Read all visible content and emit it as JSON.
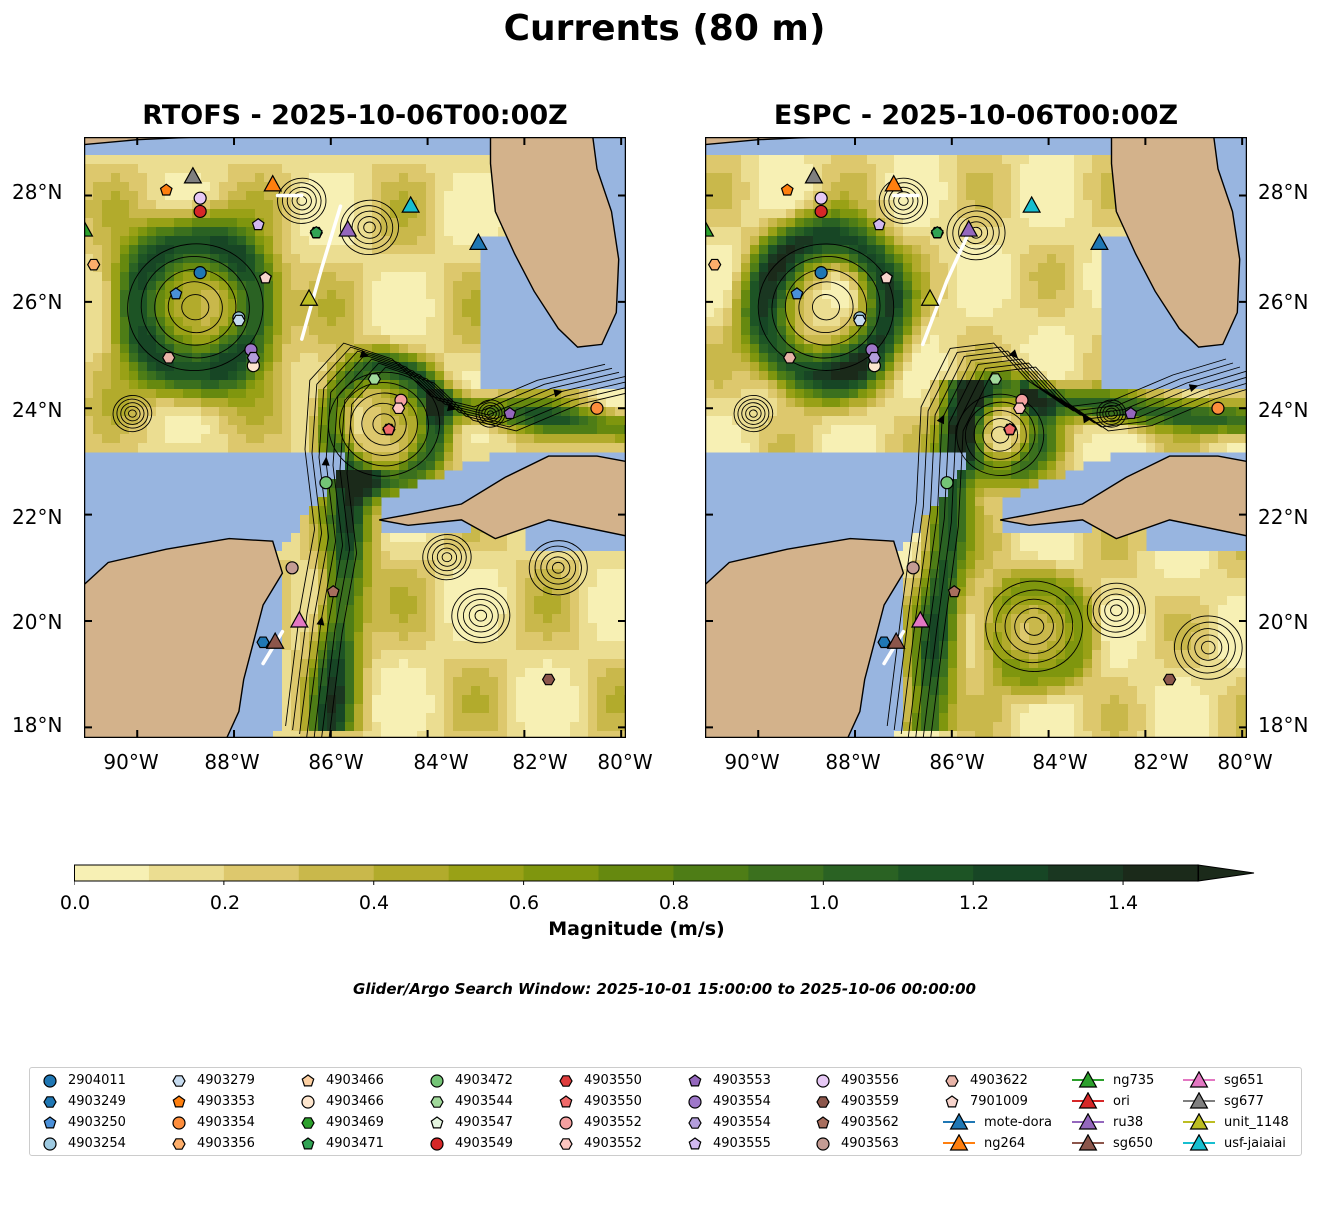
{
  "figure": {
    "title": "Currents (80 m)",
    "search_window": "Glider/Argo Search Window: 2025-10-01 15:00:00 to 2025-10-06 00:00:00"
  },
  "panels": [
    {
      "title": "RTOFS - 2025-10-06T00:00Z",
      "model": "RTOFS"
    },
    {
      "title": "ESPC - 2025-10-06T00:00Z",
      "model": "ESPC"
    }
  ],
  "axes": {
    "lat_ticks": [
      "28°N",
      "26°N",
      "24°N",
      "22°N",
      "20°N",
      "18°N"
    ],
    "lon_ticks": [
      "90°W",
      "88°W",
      "86°W",
      "84°W",
      "82°W",
      "80°W"
    ],
    "lon_range": [
      -91.1,
      -79.9
    ],
    "lat_range": [
      17.8,
      29.1
    ]
  },
  "colorbar": {
    "label": "Magnitude (m/s)",
    "ticks": [
      "0.0",
      "0.2",
      "0.4",
      "0.6",
      "0.8",
      "1.0",
      "1.2",
      "1.4"
    ],
    "range": [
      0,
      1.5
    ],
    "extend": "max",
    "colors": [
      "#f7f0b4",
      "#ebdd91",
      "#ddc86d",
      "#c9b84b",
      "#b2ab2c",
      "#99a116",
      "#7f960e",
      "#66890f",
      "#4e7d16",
      "#3b701e",
      "#2a6223",
      "#1d5425",
      "#174625",
      "#1a3721",
      "#1b2a1a"
    ]
  },
  "legend": {
    "columns": [
      [
        {
          "label": "2904011",
          "marker": "circle",
          "color": "#1f77b4"
        },
        {
          "label": "4903249",
          "marker": "hexagon",
          "color": "#1f77b4"
        },
        {
          "label": "4903250",
          "marker": "pentagon",
          "color": "#4a90d9"
        },
        {
          "label": "4903254",
          "marker": "circle",
          "color": "#9ecae1"
        }
      ],
      [
        {
          "label": "4903279",
          "marker": "hexagon",
          "color": "#c6dbef"
        },
        {
          "label": "4903353",
          "marker": "pentagon",
          "color": "#ff7f0e"
        },
        {
          "label": "4903354",
          "marker": "circle",
          "color": "#fd8d3c"
        },
        {
          "label": "4903356",
          "marker": "hexagon",
          "color": "#fdae6b"
        }
      ],
      [
        {
          "label": "4903466",
          "marker": "pentagon",
          "color": "#fdd0a2"
        },
        {
          "label": "4903466",
          "marker": "circle",
          "color": "#fee6ce"
        },
        {
          "label": "4903469",
          "marker": "hexagon",
          "color": "#2ca02c"
        },
        {
          "label": "4903471",
          "marker": "pentagon",
          "color": "#31a354"
        }
      ],
      [
        {
          "label": "4903472",
          "marker": "circle",
          "color": "#74c476"
        },
        {
          "label": "4903544",
          "marker": "hexagon",
          "color": "#a1d99b"
        },
        {
          "label": "4903547",
          "marker": "pentagon",
          "color": "#e5f5e0"
        },
        {
          "label": "4903549",
          "marker": "circle",
          "color": "#d62728"
        }
      ],
      [
        {
          "label": "4903550",
          "marker": "hexagon",
          "color": "#de3c3c"
        },
        {
          "label": "4903550",
          "marker": "pentagon",
          "color": "#f06a6a"
        },
        {
          "label": "4903552",
          "marker": "circle",
          "color": "#f4a0a0"
        },
        {
          "label": "4903552",
          "marker": "hexagon",
          "color": "#fcc5c0"
        }
      ],
      [
        {
          "label": "4903553",
          "marker": "pentagon",
          "color": "#9467bd"
        },
        {
          "label": "4903554",
          "marker": "circle",
          "color": "#9e77c9"
        },
        {
          "label": "4903554",
          "marker": "hexagon",
          "color": "#b39ddb"
        },
        {
          "label": "4903555",
          "marker": "pentagon",
          "color": "#d1b8f0"
        }
      ],
      [
        {
          "label": "4903556",
          "marker": "circle",
          "color": "#e6c8f5"
        },
        {
          "label": "4903559",
          "marker": "hexagon",
          "color": "#8c564b"
        },
        {
          "label": "4903562",
          "marker": "pentagon",
          "color": "#a86e5e"
        },
        {
          "label": "4903563",
          "marker": "circle",
          "color": "#c49c94"
        }
      ],
      [
        {
          "label": "4903622",
          "marker": "hexagon",
          "color": "#e8b4a8"
        },
        {
          "label": "7901009",
          "marker": "pentagon",
          "color": "#f7d4cc"
        },
        {
          "label": "mote-dora",
          "marker": "triangle",
          "color": "#1f77b4"
        },
        {
          "label": "ng264",
          "marker": "triangle",
          "color": "#ff7f0e"
        }
      ],
      [
        {
          "label": "ng735",
          "marker": "triangle",
          "color": "#2ca02c"
        },
        {
          "label": "ori",
          "marker": "triangle",
          "color": "#d62728"
        },
        {
          "label": "ru38",
          "marker": "triangle",
          "color": "#9467bd"
        },
        {
          "label": "sg650",
          "marker": "triangle",
          "color": "#8c564b"
        }
      ],
      [
        {
          "label": "sg651",
          "marker": "triangle",
          "color": "#e377c2"
        },
        {
          "label": "sg677",
          "marker": "triangle",
          "color": "#7f7f7f"
        },
        {
          "label": "unit_1148",
          "marker": "triangle",
          "color": "#bcbd22"
        },
        {
          "label": "usf-jaiaiai",
          "marker": "triangle",
          "color": "#17becf"
        }
      ]
    ]
  },
  "observations": [
    {
      "id": "2904011",
      "marker": "circle",
      "color": "#1f77b4",
      "lon": -88.7,
      "lat": 26.55
    },
    {
      "id": "4903249",
      "marker": "hexagon",
      "color": "#1f77b4",
      "lon": -87.4,
      "lat": 19.6
    },
    {
      "id": "4903250",
      "marker": "pentagon",
      "color": "#4a90d9",
      "lon": -89.2,
      "lat": 26.15
    },
    {
      "id": "4903254",
      "marker": "circle",
      "color": "#9ecae1",
      "lon": -87.9,
      "lat": 25.7
    },
    {
      "id": "4903279",
      "marker": "hexagon",
      "color": "#c6dbef",
      "lon": -87.9,
      "lat": 25.65
    },
    {
      "id": "4903353",
      "marker": "pentagon",
      "color": "#ff7f0e",
      "lon": -89.4,
      "lat": 28.1
    },
    {
      "id": "4903354",
      "marker": "circle",
      "color": "#fd8d3c",
      "lon": -80.5,
      "lat": 24.0
    },
    {
      "id": "4903356",
      "marker": "hexagon",
      "color": "#fdae6b",
      "lon": -90.9,
      "lat": 26.7
    },
    {
      "id": "4903466",
      "marker": "pentagon",
      "color": "#fdd0a2",
      "lon": -87.35,
      "lat": 26.45
    },
    {
      "id": "4903466",
      "marker": "circle",
      "color": "#fee6ce",
      "lon": -87.6,
      "lat": 24.8
    },
    {
      "id": "4903469",
      "marker": "hexagon",
      "color": "#2ca02c",
      "lon": -86.3,
      "lat": 27.3
    },
    {
      "id": "4903471",
      "marker": "pentagon",
      "color": "#31a354",
      "lon": -86.3,
      "lat": 27.3
    },
    {
      "id": "4903472",
      "marker": "circle",
      "color": "#74c476",
      "lon": -86.1,
      "lat": 22.6
    },
    {
      "id": "4903544",
      "marker": "hexagon",
      "color": "#a1d99b",
      "lon": -85.1,
      "lat": 24.55
    },
    {
      "id": "4903547",
      "marker": "pentagon",
      "color": "#e5f5e0",
      "lon": -87.35,
      "lat": 26.45
    },
    {
      "id": "4903549",
      "marker": "circle",
      "color": "#d62728",
      "lon": -88.7,
      "lat": 27.7
    },
    {
      "id": "4903550",
      "marker": "hexagon",
      "color": "#de3c3c",
      "lon": -84.8,
      "lat": 23.6
    },
    {
      "id": "4903550",
      "marker": "pentagon",
      "color": "#f06a6a",
      "lon": -84.8,
      "lat": 23.6
    },
    {
      "id": "4903552",
      "marker": "circle",
      "color": "#f4a0a0",
      "lon": -84.55,
      "lat": 24.15
    },
    {
      "id": "4903552",
      "marker": "hexagon",
      "color": "#fcc5c0",
      "lon": -84.6,
      "lat": 24.0
    },
    {
      "id": "4903553",
      "marker": "pentagon",
      "color": "#9467bd",
      "lon": -82.3,
      "lat": 23.9
    },
    {
      "id": "4903554",
      "marker": "circle",
      "color": "#9e77c9",
      "lon": -87.65,
      "lat": 25.1
    },
    {
      "id": "4903554",
      "marker": "hexagon",
      "color": "#b39ddb",
      "lon": -87.6,
      "lat": 24.95
    },
    {
      "id": "4903555",
      "marker": "pentagon",
      "color": "#d1b8f0",
      "lon": -87.5,
      "lat": 27.45
    },
    {
      "id": "4903556",
      "marker": "circle",
      "color": "#e6c8f5",
      "lon": -88.7,
      "lat": 27.95
    },
    {
      "id": "4903559",
      "marker": "hexagon",
      "color": "#8c564b",
      "lon": -81.5,
      "lat": 18.9
    },
    {
      "id": "4903562",
      "marker": "pentagon",
      "color": "#a86e5e",
      "lon": -85.95,
      "lat": 20.55
    },
    {
      "id": "4903563",
      "marker": "circle",
      "color": "#c49c94",
      "lon": -86.8,
      "lat": 21.0
    },
    {
      "id": "4903622",
      "marker": "hexagon",
      "color": "#e8b4a8",
      "lon": -89.35,
      "lat": 24.95
    },
    {
      "id": "7901009",
      "marker": "pentagon",
      "color": "#f7d4cc",
      "lon": -87.35,
      "lat": 26.45
    },
    {
      "id": "mote-dora",
      "marker": "triangle",
      "color": "#1f77b4",
      "lon": -82.95,
      "lat": 27.1
    },
    {
      "id": "ng264",
      "marker": "triangle",
      "color": "#ff7f0e",
      "lon": -87.2,
      "lat": 28.2
    },
    {
      "id": "ng735",
      "marker": "triangle",
      "color": "#2ca02c",
      "lon": -91.1,
      "lat": 27.35
    },
    {
      "id": "ru38",
      "marker": "triangle",
      "color": "#9467bd",
      "lon": -85.65,
      "lat": 27.35
    },
    {
      "id": "sg650",
      "marker": "triangle",
      "color": "#8c564b",
      "lon": -87.15,
      "lat": 19.6
    },
    {
      "id": "sg651",
      "marker": "triangle",
      "color": "#e377c2",
      "lon": -86.65,
      "lat": 20.0
    },
    {
      "id": "sg677",
      "marker": "triangle",
      "color": "#7f7f7f",
      "lon": -88.85,
      "lat": 28.35
    },
    {
      "id": "unit_1148",
      "marker": "triangle",
      "color": "#bcbd22",
      "lon": -86.45,
      "lat": 26.05
    },
    {
      "id": "usf-jaiaiai",
      "marker": "triangle",
      "color": "#17becf",
      "lon": -84.35,
      "lat": 27.8
    }
  ],
  "colors": {
    "ocean": "#98b5e0",
    "land": "#d3b28b",
    "shelf_glider_track": "#ffffff"
  }
}
